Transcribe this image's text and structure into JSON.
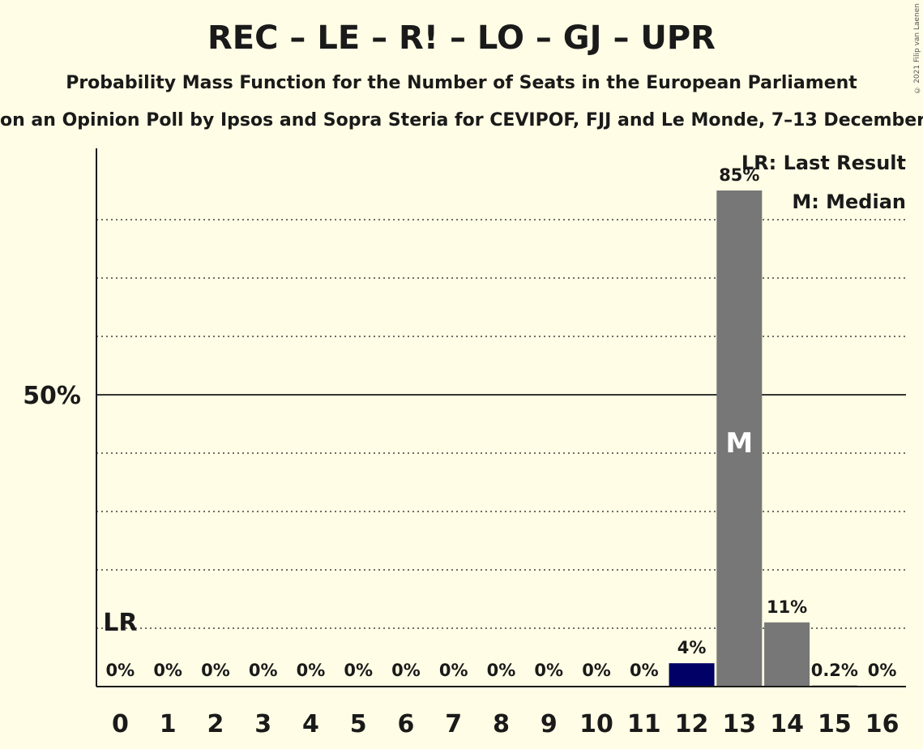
{
  "title": "REC – LE – R! – LO – GJ – UPR",
  "subtitle": "Probability Mass Function for the Number of Seats in the European Parliament",
  "source": "on an Opinion Poll by Ipsos and Sopra Steria for CEVIPOF, FJJ and Le Monde, 7–13 December",
  "copyright": "© 2021 Filip van Laenen",
  "legend": {
    "last_result": "LR: Last Result",
    "median": "M: Median"
  },
  "colors": {
    "background": "#FFFDE5",
    "bar": "#777777",
    "last_result_bar": "#000066",
    "text": "#1a1a1a"
  },
  "chart_data": {
    "type": "bar",
    "categories": [
      "0",
      "1",
      "2",
      "3",
      "4",
      "5",
      "6",
      "7",
      "8",
      "9",
      "10",
      "11",
      "12",
      "13",
      "14",
      "15",
      "16"
    ],
    "values": [
      0,
      0,
      0,
      0,
      0,
      0,
      0,
      0,
      0,
      0,
      0,
      0,
      4,
      85,
      11,
      0.2,
      0
    ],
    "value_labels": [
      "0%",
      "0%",
      "0%",
      "0%",
      "0%",
      "0%",
      "0%",
      "0%",
      "0%",
      "0%",
      "0%",
      "0%",
      "4%",
      "85%",
      "11%",
      "0.2%",
      "0%"
    ],
    "ylim": [
      0,
      92
    ],
    "ytick_labels": [
      {
        "value": 50,
        "label": "50%"
      }
    ],
    "gridlines": [
      10,
      20,
      30,
      40,
      60,
      70,
      80
    ],
    "last_result": {
      "seats": "0",
      "label": "LR"
    },
    "median": {
      "seats": "13",
      "label": "M"
    },
    "highlight_category": "12"
  }
}
